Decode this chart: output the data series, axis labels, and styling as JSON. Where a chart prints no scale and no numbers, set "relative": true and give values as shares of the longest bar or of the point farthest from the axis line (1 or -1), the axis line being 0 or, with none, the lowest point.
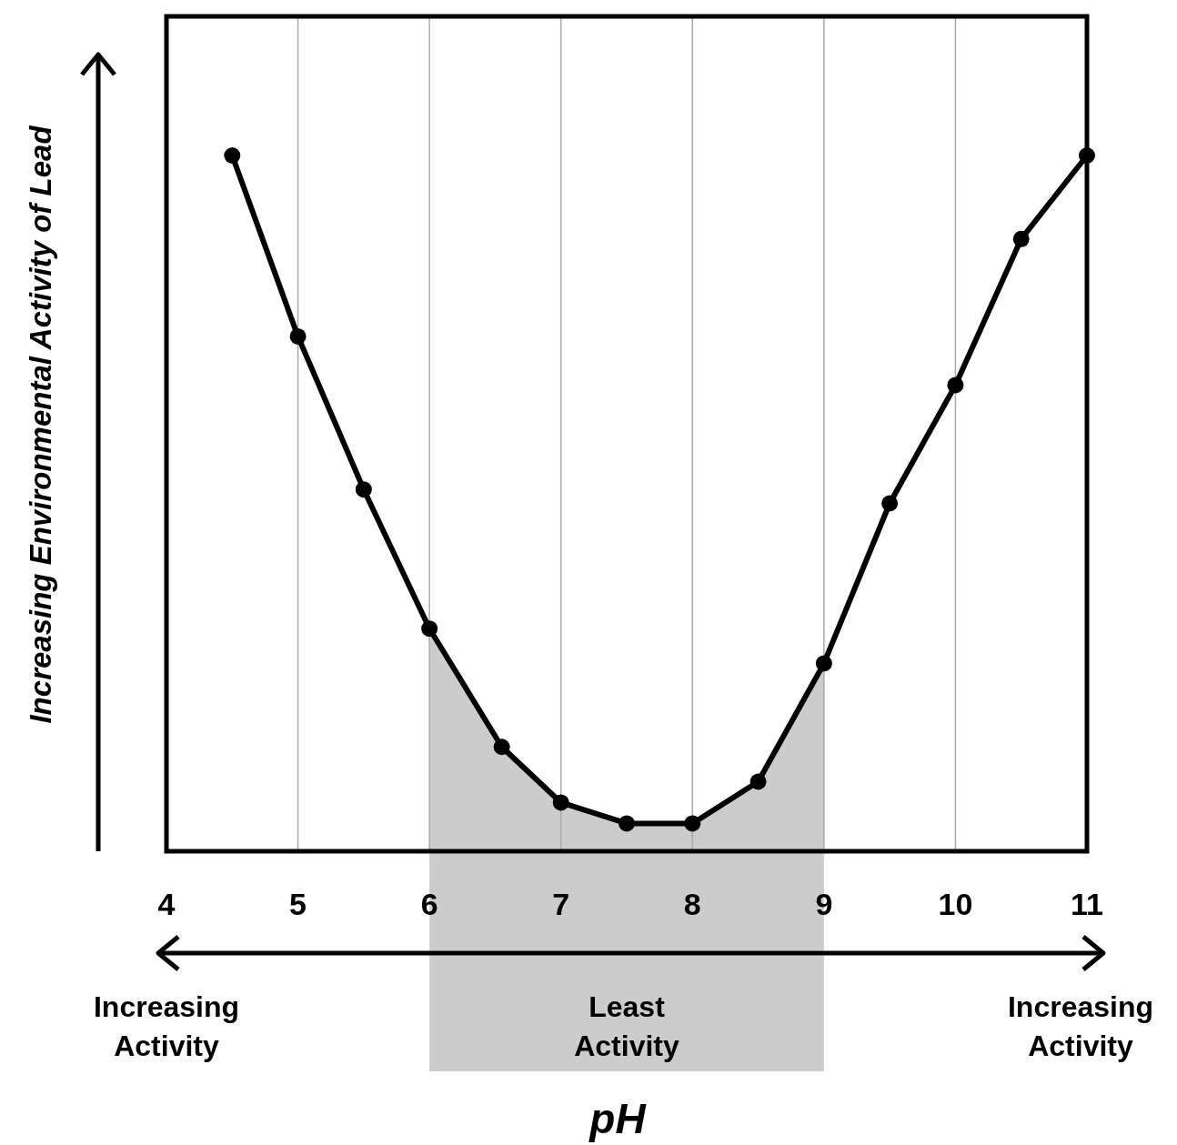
{
  "chart_data": {
    "type": "line",
    "xlabel": "pH",
    "ylabel": "Increasing Environmental Activity of Lead",
    "relative": true,
    "x": [
      4.5,
      5,
      5.5,
      6,
      6.55,
      7,
      7.5,
      8,
      8.5,
      9,
      9.5,
      10,
      10.5,
      11
    ],
    "series": [
      {
        "color": "#000000",
        "values": [
          1,
          0.74,
          0.52,
          0.32,
          0.15,
          0.07,
          0.04,
          0.04,
          0.1,
          0.27,
          0.5,
          0.67,
          0.88,
          1
        ]
      }
    ],
    "xlim": [
      4,
      11
    ],
    "xticks": [
      4,
      5,
      6,
      7,
      8,
      9,
      10,
      11
    ],
    "grid": "x",
    "marker": "circle",
    "line_style": "solid",
    "bands": [
      {
        "axis": "x",
        "from": 6,
        "to": 9,
        "label": "Least Activity",
        "color": "#cccccc"
      }
    ],
    "annotations": [
      "Increasing Activity",
      "Increasing Activity"
    ]
  }
}
